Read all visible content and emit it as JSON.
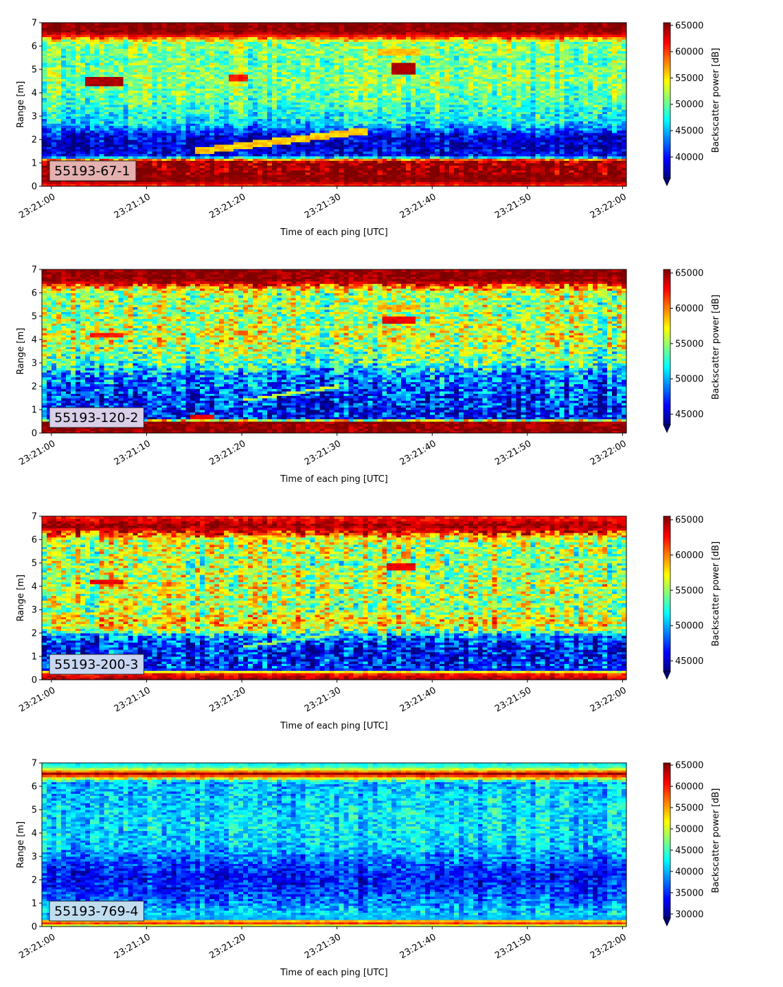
{
  "chart_data": [
    {
      "type": "heatmap",
      "label": "55193-67-1",
      "label_box_color": "#e4b0b0",
      "xlabel": "Time of each ping [UTC]",
      "ylabel": "Range [m]",
      "xticks": [
        "23:21:00",
        "23:21:10",
        "23:21:20",
        "23:21:30",
        "23:21:40",
        "23:21:50",
        "23:22:00"
      ],
      "xlim_seconds": [
        -1,
        60.4
      ],
      "yticks": [
        "0",
        "1",
        "2",
        "3",
        "4",
        "5",
        "6",
        "7"
      ],
      "ylim": [
        0,
        7
      ],
      "colorbar": {
        "label": "Backscatter power [dB]",
        "range": [
          36000,
          65500
        ],
        "ticks": [
          "40000",
          "45000",
          "50000",
          "55000",
          "60000",
          "65000"
        ],
        "extend": "min",
        "colormap": "jet"
      },
      "profile": [
        {
          "r": 0.0,
          "v": 60000
        },
        {
          "r": 0.25,
          "v": 65000
        },
        {
          "r": 0.8,
          "v": 65000
        },
        {
          "r": 1.05,
          "v": 64000
        },
        {
          "r": 1.15,
          "v": 58000
        },
        {
          "r": 1.3,
          "v": 40000
        },
        {
          "r": 1.7,
          "v": 38000
        },
        {
          "r": 2.2,
          "v": 39000
        },
        {
          "r": 2.5,
          "v": 44000
        },
        {
          "r": 2.9,
          "v": 47000
        },
        {
          "r": 3.5,
          "v": 49000
        },
        {
          "r": 4.5,
          "v": 51000
        },
        {
          "r": 5.5,
          "v": 50000
        },
        {
          "r": 6.2,
          "v": 51500
        },
        {
          "r": 6.4,
          "v": 60000
        },
        {
          "r": 6.6,
          "v": 65000
        },
        {
          "r": 7.0,
          "v": 65000
        }
      ],
      "features": [
        {
          "t0": 3.5,
          "t1": 7.5,
          "r0": 4.3,
          "r1": 4.7,
          "v": 65000
        },
        {
          "t0": 18.5,
          "t1": 20.5,
          "r0": 4.5,
          "r1": 4.8,
          "v": 62000
        },
        {
          "t0": 35.5,
          "t1": 38.5,
          "r0": 4.8,
          "r1": 5.25,
          "v": 65000
        },
        {
          "t0": 34,
          "t1": 39,
          "r0": 5.6,
          "r1": 5.9,
          "v": 57000
        }
      ],
      "diagonal": {
        "t0": 15,
        "t1": 33,
        "r0": 1.5,
        "r1": 2.4,
        "thickness": 0.3,
        "v": 56000
      },
      "noise": 4500
    },
    {
      "type": "heatmap",
      "label": "55193-120-2",
      "label_box_color": "#d9cfe8",
      "xlabel": "Time of each ping [UTC]",
      "ylabel": "Range [m]",
      "xticks": [
        "23:21:00",
        "23:21:10",
        "23:21:20",
        "23:21:30",
        "23:21:40",
        "23:21:50",
        "23:22:00"
      ],
      "xlim_seconds": [
        -1,
        60.4
      ],
      "yticks": [
        "0",
        "1",
        "2",
        "3",
        "4",
        "5",
        "6",
        "7"
      ],
      "ylim": [
        0,
        7
      ],
      "colorbar": {
        "label": "Backscatter power [dB]",
        "range": [
          43500,
          65500
        ],
        "ticks": [
          "45000",
          "50000",
          "55000",
          "60000",
          "65000"
        ],
        "extend": "min",
        "colormap": "jet"
      },
      "profile": [
        {
          "r": 0.0,
          "v": 65000
        },
        {
          "r": 0.5,
          "v": 65000
        },
        {
          "r": 0.6,
          "v": 46000
        },
        {
          "r": 1.5,
          "v": 47000
        },
        {
          "r": 2.5,
          "v": 49000
        },
        {
          "r": 3.0,
          "v": 53000
        },
        {
          "r": 4.0,
          "v": 56000
        },
        {
          "r": 5.0,
          "v": 55000
        },
        {
          "r": 6.0,
          "v": 55000
        },
        {
          "r": 6.3,
          "v": 60000
        },
        {
          "r": 6.5,
          "v": 65000
        },
        {
          "r": 7.0,
          "v": 65000
        }
      ],
      "features": [
        {
          "t0": 4,
          "t1": 7.5,
          "r0": 4.1,
          "r1": 4.3,
          "v": 63000
        },
        {
          "t0": 14.5,
          "t1": 17,
          "r0": 0.65,
          "r1": 0.8,
          "v": 64000
        },
        {
          "t0": 19,
          "t1": 20.5,
          "r0": 4.2,
          "r1": 4.4,
          "v": 61000
        },
        {
          "t0": 34.5,
          "t1": 38.5,
          "r0": 4.7,
          "r1": 4.95,
          "v": 64000
        },
        {
          "t0": 34,
          "t1": 39,
          "r0": 5.3,
          "r1": 5.5,
          "v": 60000
        }
      ],
      "diagonal": {
        "t0": 20,
        "t1": 30,
        "r0": 1.4,
        "r1": 2.0,
        "thickness": 0.12,
        "v": 56000
      },
      "noise": 5000
    },
    {
      "type": "heatmap",
      "label": "55193-200-3",
      "label_box_color": "#c8d6f2",
      "xlabel": "Time of each ping [UTC]",
      "ylabel": "Range [m]",
      "xticks": [
        "23:21:00",
        "23:21:10",
        "23:21:20",
        "23:21:30",
        "23:21:40",
        "23:21:50",
        "23:22:00"
      ],
      "xlim_seconds": [
        -1,
        60.4
      ],
      "yticks": [
        "0",
        "1",
        "2",
        "3",
        "4",
        "5",
        "6",
        "7"
      ],
      "ylim": [
        0,
        7
      ],
      "colorbar": {
        "label": "Backscatter power [dB]",
        "range": [
          43500,
          65500
        ],
        "ticks": [
          "45000",
          "50000",
          "55000",
          "60000",
          "65000"
        ],
        "extend": "min",
        "colormap": "jet"
      },
      "profile": [
        {
          "r": 0.0,
          "v": 65000
        },
        {
          "r": 0.3,
          "v": 62000
        },
        {
          "r": 0.45,
          "v": 47000
        },
        {
          "r": 1.3,
          "v": 46500
        },
        {
          "r": 1.9,
          "v": 49000
        },
        {
          "r": 2.1,
          "v": 55000
        },
        {
          "r": 2.5,
          "v": 58000
        },
        {
          "r": 3.0,
          "v": 55000
        },
        {
          "r": 4.0,
          "v": 56000
        },
        {
          "r": 5.0,
          "v": 55000
        },
        {
          "r": 6.0,
          "v": 56000
        },
        {
          "r": 6.3,
          "v": 62000
        },
        {
          "r": 6.6,
          "v": 65000
        },
        {
          "r": 7.0,
          "v": 62000
        }
      ],
      "features": [
        {
          "t0": 4,
          "t1": 7.5,
          "r0": 4.1,
          "r1": 4.3,
          "v": 64000
        },
        {
          "t0": 35,
          "t1": 38.5,
          "r0": 4.75,
          "r1": 4.95,
          "v": 64000
        },
        {
          "t0": 36.5,
          "t1": 38,
          "r0": 5.2,
          "r1": 5.5,
          "v": 61000
        }
      ],
      "diagonal": {
        "t0": 20,
        "t1": 30,
        "r0": 1.4,
        "r1": 2.0,
        "thickness": 0.12,
        "v": 55000
      },
      "noise": 5000
    },
    {
      "type": "heatmap",
      "label": "55193-769-4",
      "label_box_color": "#c0ddf0",
      "xlabel": "Time of each ping [UTC]",
      "ylabel": "Range [m]",
      "xticks": [
        "23:21:00",
        "23:21:10",
        "23:21:20",
        "23:21:30",
        "23:21:40",
        "23:21:50",
        "23:22:00"
      ],
      "xlim_seconds": [
        -1,
        60.4
      ],
      "yticks": [
        "0",
        "1",
        "2",
        "3",
        "4",
        "5",
        "6",
        "7"
      ],
      "ylim": [
        0,
        7
      ],
      "colorbar": {
        "label": "Backscatter power [dB]",
        "range": [
          29000,
          65500
        ],
        "ticks": [
          "30000",
          "35000",
          "40000",
          "45000",
          "50000",
          "55000",
          "60000",
          "65000"
        ],
        "extend": "min",
        "colormap": "jet"
      },
      "profile": [
        {
          "r": 0.0,
          "v": 44000
        },
        {
          "r": 0.1,
          "v": 56000
        },
        {
          "r": 0.2,
          "v": 62000
        },
        {
          "r": 0.35,
          "v": 40000
        },
        {
          "r": 0.6,
          "v": 41000
        },
        {
          "r": 1.0,
          "v": 38000
        },
        {
          "r": 1.6,
          "v": 35000
        },
        {
          "r": 2.2,
          "v": 34000
        },
        {
          "r": 2.8,
          "v": 37000
        },
        {
          "r": 3.5,
          "v": 41000
        },
        {
          "r": 4.5,
          "v": 42000
        },
        {
          "r": 5.5,
          "v": 41000
        },
        {
          "r": 6.2,
          "v": 40000
        },
        {
          "r": 6.4,
          "v": 55000
        },
        {
          "r": 6.55,
          "v": 64000
        },
        {
          "r": 6.7,
          "v": 52000
        },
        {
          "r": 6.85,
          "v": 45000
        },
        {
          "r": 7.0,
          "v": 42000
        }
      ],
      "features": [],
      "diagonal": null,
      "noise": 5000
    }
  ]
}
